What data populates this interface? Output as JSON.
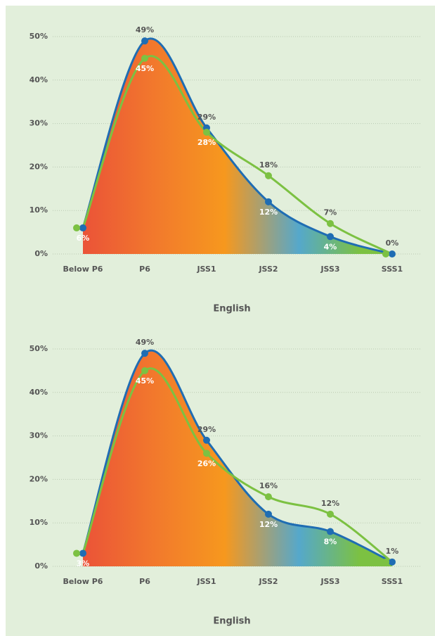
{
  "chart_data": [
    {
      "type": "line",
      "xlabel": "English",
      "categories": [
        "Below P6",
        "P6",
        "JSS1",
        "JSS2",
        "JSS3",
        "SSS1"
      ],
      "ylim": [
        0,
        50
      ],
      "yticks": [
        {
          "value": 0,
          "label": "0%"
        },
        {
          "value": 10,
          "label": "10%"
        },
        {
          "value": 20,
          "label": "20%"
        },
        {
          "value": 30,
          "label": "30%"
        },
        {
          "value": 40,
          "label": "40%"
        },
        {
          "value": 50,
          "label": "50%"
        }
      ],
      "grid": true,
      "series": [
        {
          "color": "#1f6db3",
          "values": [
            6,
            49,
            29,
            12,
            4,
            0
          ],
          "value_labels": [
            "6%",
            "49%",
            "29%",
            "12%",
            "4%",
            "0%"
          ]
        },
        {
          "color": "#7cc142",
          "values": [
            6,
            45,
            28,
            18,
            7,
            0
          ],
          "value_labels": [
            null,
            "45%",
            "28%",
            "18%",
            "7%",
            null
          ]
        }
      ]
    },
    {
      "type": "line",
      "xlabel": "English",
      "categories": [
        "Below P6",
        "P6",
        "JSS1",
        "JSS2",
        "JSS3",
        "SSS1"
      ],
      "ylim": [
        0,
        50
      ],
      "yticks": [
        {
          "value": 0,
          "label": "0%"
        },
        {
          "value": 10,
          "label": "10%"
        },
        {
          "value": 20,
          "label": "20%"
        },
        {
          "value": 30,
          "label": "30%"
        },
        {
          "value": 40,
          "label": "40%"
        },
        {
          "value": 50,
          "label": "50%"
        }
      ],
      "grid": true,
      "series": [
        {
          "color": "#1f6db3",
          "values": [
            3,
            49,
            29,
            12,
            8,
            1
          ],
          "value_labels": [
            "3%",
            "49%",
            "29%",
            "12%",
            "8%",
            "1%"
          ]
        },
        {
          "color": "#7cc142",
          "values": [
            3,
            45,
            26,
            16,
            12,
            1
          ],
          "value_labels": [
            null,
            "45%",
            "26%",
            "16%",
            "12%",
            null
          ]
        }
      ]
    }
  ]
}
